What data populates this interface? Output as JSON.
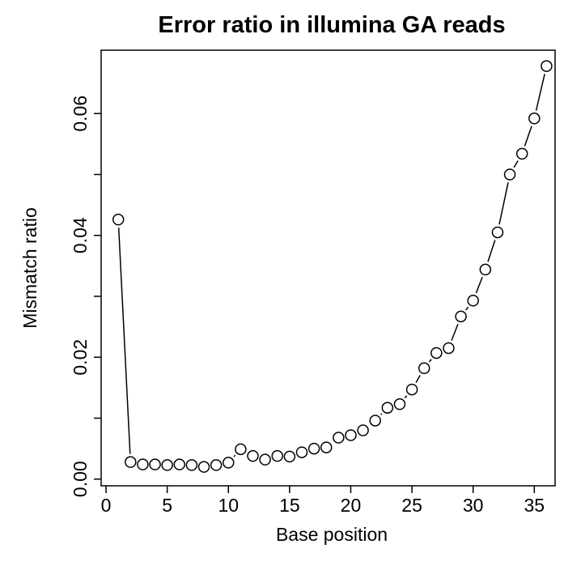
{
  "chart_data": {
    "type": "line",
    "title": "Error ratio in illumina GA reads",
    "x_label": "Base position",
    "y_label": "Mismatch ratio",
    "x": [
      1,
      2,
      3,
      4,
      5,
      6,
      7,
      8,
      9,
      10,
      11,
      12,
      13,
      14,
      15,
      16,
      17,
      18,
      19,
      20,
      21,
      22,
      23,
      24,
      25,
      26,
      27,
      28,
      29,
      30,
      31,
      32,
      33,
      34,
      35,
      36
    ],
    "values": [
      0.0426,
      0.0028,
      0.0024,
      0.0024,
      0.0023,
      0.0024,
      0.0023,
      0.002,
      0.0023,
      0.0027,
      0.0049,
      0.0038,
      0.0032,
      0.0038,
      0.0037,
      0.0044,
      0.005,
      0.0052,
      0.0068,
      0.0072,
      0.008,
      0.0096,
      0.0117,
      0.0123,
      0.0147,
      0.0182,
      0.0207,
      0.0215,
      0.0267,
      0.0293,
      0.0344,
      0.0405,
      0.05,
      0.0534,
      0.0592,
      0.0678
    ],
    "color": "#000000",
    "xlim": [
      -0.4,
      36.7
    ],
    "xticks": [
      0,
      5,
      10,
      15,
      20,
      25,
      30,
      35
    ],
    "ylim": [
      -0.0011,
      0.0704
    ],
    "yticks": [
      {
        "value": 0,
        "label": "0.00"
      },
      {
        "value": 0.02,
        "label": "0.02"
      },
      {
        "value": 0.04,
        "label": "0.04"
      },
      {
        "value": 0.06,
        "label": "0.06"
      }
    ],
    "yminorticks": [
      0.01,
      0.03,
      0.05
    ]
  }
}
